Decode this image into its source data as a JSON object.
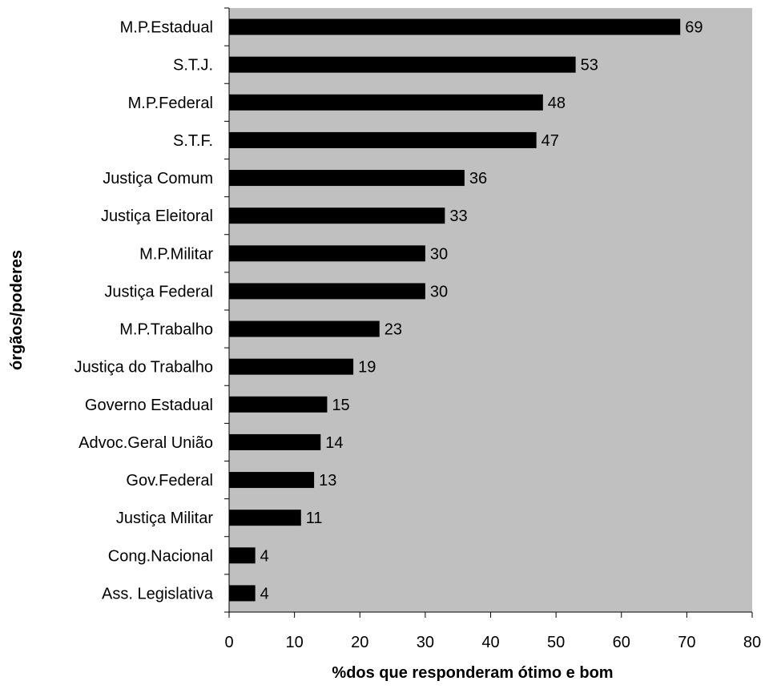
{
  "chart_data": {
    "type": "bar",
    "orientation": "horizontal",
    "categories": [
      "M.P.Estadual",
      "S.T.J.",
      "M.P.Federal",
      "S.T.F.",
      "Justiça Comum",
      "Justiça Eleitoral",
      "M.P.Militar",
      "Justiça Federal",
      "M.P.Trabalho",
      "Justiça do Trabalho",
      "Governo Estadual",
      "Advoc.Geral União",
      "Gov.Federal",
      "Justiça Militar",
      "Cong.Nacional",
      "Ass. Legislativa"
    ],
    "values": [
      69,
      53,
      48,
      47,
      36,
      33,
      30,
      30,
      23,
      19,
      15,
      14,
      13,
      11,
      4,
      4
    ],
    "xlabel": "%dos que responderam ótimo e bom",
    "ylabel": "órgãos/poderes",
    "xlim": [
      0,
      80
    ],
    "xticks": [
      0,
      10,
      20,
      30,
      40,
      50,
      60,
      70,
      80
    ],
    "grid": false,
    "legend": "none",
    "colors": {
      "plot_background": "#c0c0c0",
      "bar": "#000000",
      "text": "#000000"
    }
  }
}
